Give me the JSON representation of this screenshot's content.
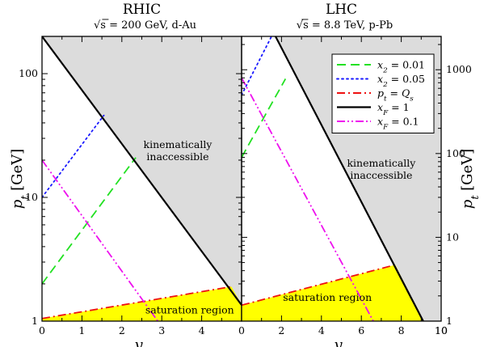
{
  "chart_data": [
    {
      "panel": "left",
      "type": "line",
      "title": "RHIC",
      "subtitle": "√s = 200 GeV, d-Au",
      "xlabel": "y_h",
      "ylabel": "p_t [GeV]",
      "xlim": [
        0,
        5
      ],
      "ylim": [
        1,
        200
      ],
      "yscale": "log",
      "xticks": [
        0,
        1,
        2,
        3,
        4
      ],
      "yticks": [
        1,
        10,
        100
      ],
      "regions": [
        {
          "name": "kinematically inaccessible",
          "lines": [
            "kinematically",
            "inaccessible"
          ],
          "at": [
            3.4,
            25
          ],
          "color": "#dcdcdc",
          "polygon": [
            [
              0,
              200
            ],
            [
              5,
              200
            ],
            [
              5,
              1.35
            ]
          ]
        },
        {
          "name": "saturation region",
          "lines": [
            "saturation region"
          ],
          "at": [
            3.7,
            1.15
          ],
          "color": "#ffff00",
          "polygon": [
            [
              0,
              1.05
            ],
            [
              4.75,
              1.9
            ],
            [
              5,
              1.35
            ],
            [
              5,
              1
            ],
            [
              0,
              1
            ]
          ]
        }
      ],
      "series": [
        {
          "name": "x2 = 0.01",
          "style": "dashed",
          "color": "#22e122",
          "x": [
            0,
            2.35
          ],
          "y": [
            2.0,
            21
          ]
        },
        {
          "name": "x2 = 0.05",
          "style": "dotted",
          "color": "#1a1aff",
          "x": [
            0,
            1.55
          ],
          "y": [
            10,
            46
          ]
        },
        {
          "name": "pt = Qs",
          "style": "dashdot",
          "color": "#ee1111",
          "x": [
            0,
            4.75
          ],
          "y": [
            1.05,
            1.9
          ]
        },
        {
          "name": "xF = 1",
          "style": "solid",
          "color": "#000000",
          "x": [
            0,
            5
          ],
          "y": [
            200,
            1.35
          ]
        },
        {
          "name": "xF = 0.1",
          "style": "dashdotdot",
          "color": "#ee11ee",
          "x": [
            0,
            2.9
          ],
          "y": [
            20,
            1.0
          ]
        }
      ]
    },
    {
      "panel": "right",
      "type": "line",
      "title": "LHC",
      "subtitle": "√s = 8.8 TeV, p-Pb",
      "xlabel": "y_h",
      "ylabel": "p_t [GeV]",
      "xlim": [
        0,
        10
      ],
      "ylim": [
        1,
        2500
      ],
      "yscale": "log",
      "xticks": [
        0,
        2,
        4,
        6,
        8,
        10
      ],
      "yticks": [
        1,
        10,
        100,
        1000
      ],
      "regions": [
        {
          "name": "kinematically inaccessible",
          "lines": [
            "kinematically",
            "inaccessible"
          ],
          "at": [
            7.0,
            70
          ],
          "color": "#dcdcdc",
          "polygon": [
            [
              1.7,
              2500
            ],
            [
              10,
              2500
            ],
            [
              10,
              1
            ],
            [
              9.1,
              1
            ]
          ]
        },
        {
          "name": "saturation region",
          "lines": [
            "saturation region"
          ],
          "at": [
            4.3,
            1.75
          ],
          "color": "#ffff00",
          "polygon": [
            [
              0,
              1.55
            ],
            [
              7.7,
              4.7
            ],
            [
              9.1,
              1
            ],
            [
              0,
              1
            ]
          ]
        }
      ],
      "series": [
        {
          "name": "x2 = 0.01",
          "style": "dashed",
          "color": "#22e122",
          "x": [
            0,
            2.2
          ],
          "y": [
            90,
            780
          ]
        },
        {
          "name": "x2 = 0.05",
          "style": "dotted",
          "color": "#1a1aff",
          "x": [
            0,
            1.5
          ],
          "y": [
            500,
            2500
          ]
        },
        {
          "name": "pt = Qs",
          "style": "dashdot",
          "color": "#ee1111",
          "x": [
            0,
            7.7
          ],
          "y": [
            1.55,
            4.7
          ]
        },
        {
          "name": "xF = 1",
          "style": "solid",
          "color": "#000000",
          "x": [
            1.7,
            9.1
          ],
          "y": [
            2500,
            1
          ]
        },
        {
          "name": "xF = 0.1",
          "style": "dashdotdot",
          "color": "#ee11ee",
          "x": [
            0,
            6.6
          ],
          "y": [
            800,
            1.0
          ]
        }
      ]
    }
  ],
  "legend": {
    "placement": "top-right",
    "entries": [
      {
        "label": "x2 = 0.01",
        "style": "dashed",
        "color": "#22e122"
      },
      {
        "label": "x2 = 0.05",
        "style": "dotted",
        "color": "#1a1aff"
      },
      {
        "label": "pt = Qs",
        "style": "dashdot",
        "color": "#ee1111"
      },
      {
        "label": "xF = 1",
        "style": "solid",
        "color": "#000000"
      },
      {
        "label": "xF = 0.1",
        "style": "dashdotdot",
        "color": "#ee11ee"
      }
    ]
  }
}
